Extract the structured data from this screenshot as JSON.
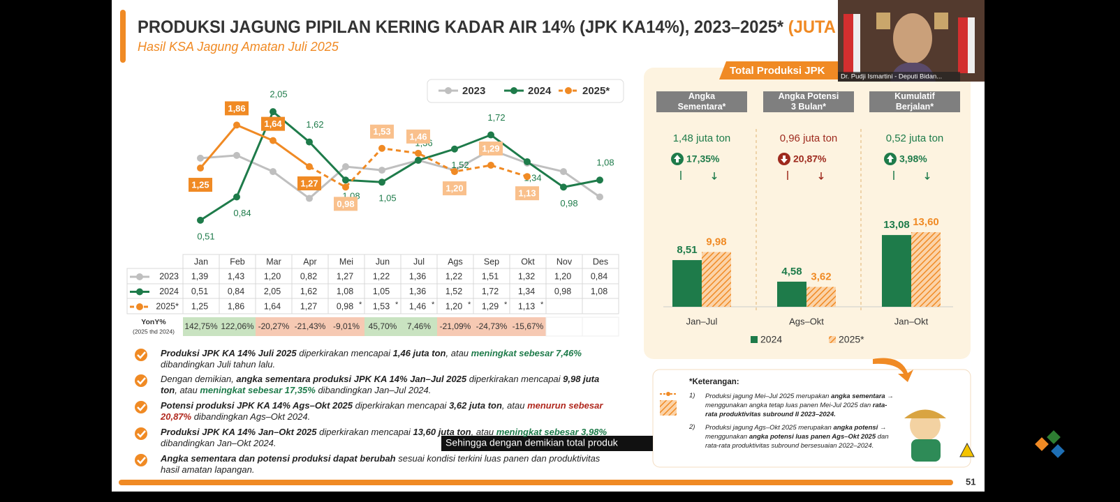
{
  "header": {
    "title": "PRODUKSI JAGUNG PIPILAN KERING KADAR AIR 14% (JPK KA14%), 2023–2025* ",
    "title_highlight": "(JUTA",
    "subtitle": "Hasil KSA Jagung Amatan Juli 2025"
  },
  "chart_data": [
    {
      "type": "line",
      "categories": [
        "Jan",
        "Feb",
        "Mar",
        "Apr",
        "Mei",
        "Jun",
        "Jul",
        "Ags",
        "Sep",
        "Okt",
        "Nov",
        "Des"
      ],
      "ylim": [
        0.4,
        2.2
      ],
      "legend": "top-right",
      "series": [
        {
          "name": "2023",
          "color": "#bfbfbf",
          "values": [
            1.39,
            1.43,
            1.2,
            0.82,
            1.27,
            1.22,
            1.36,
            1.22,
            1.51,
            1.32,
            1.2,
            0.84
          ],
          "value_labels": [
            "1,39",
            "1,43",
            "1,20",
            "0,82",
            "1,27",
            "1,22",
            "1,36",
            "1,22",
            "1,51",
            "1,32",
            "1,20",
            "0,84"
          ]
        },
        {
          "name": "2024",
          "color": "#1e7b4a",
          "values": [
            0.51,
            0.84,
            2.05,
            1.62,
            1.08,
            1.05,
            1.36,
            1.52,
            1.72,
            1.34,
            0.98,
            1.08
          ],
          "value_labels": [
            "0,51",
            "0,84",
            "2,05",
            "1,62",
            "1,08",
            "1,05",
            "1,36",
            "1,52",
            "1,72",
            "1,34",
            "0,98",
            "1,08"
          ]
        },
        {
          "name": "2025*",
          "color": "#f08a24",
          "dashed_after": "Apr",
          "values": [
            1.25,
            1.86,
            1.64,
            1.27,
            0.98,
            1.53,
            1.46,
            1.2,
            1.29,
            1.13,
            null,
            null
          ],
          "value_labels": [
            "1,25",
            "1,86",
            "1,64",
            "1,27",
            "0,98",
            "1,53",
            "1,46",
            "1,20",
            "1,29",
            "1,13",
            null,
            null
          ]
        }
      ]
    },
    {
      "type": "bar",
      "categories": [
        "Jan–Jul",
        "Ags–Okt",
        "Jan–Okt"
      ],
      "ylim": [
        0,
        15
      ],
      "legend": "bottom",
      "series": [
        {
          "name": "2024",
          "color": "#1e7b4a",
          "values": [
            8.51,
            4.58,
            13.08
          ],
          "value_labels": [
            "8,51",
            "4,58",
            "13,08"
          ]
        },
        {
          "name": "2025*",
          "color": "#f08a24",
          "pattern": "hatch",
          "values": [
            9.98,
            3.62,
            13.6
          ],
          "value_labels": [
            "9,98",
            "3,62",
            "13,60"
          ]
        }
      ]
    }
  ],
  "table": {
    "provisional_mark": "*"
  },
  "yoy": {
    "label": "YonY%",
    "note": "(2025 thd 2024)",
    "values": [
      142.75,
      122.06,
      -20.27,
      -21.43,
      -9.01,
      45.7,
      7.46,
      -21.09,
      -24.73,
      -15.67
    ],
    "value_labels": [
      "142,75%",
      "122,06%",
      "-20,27%",
      "-21,43%",
      "-9,01%",
      "45,70%",
      "7,46%",
      "-21,09%",
      "-24,73%",
      "-15,67%"
    ]
  },
  "panel_title": "Total Produksi JPK",
  "summary": [
    {
      "header": "Angka Sementara*",
      "total": "1,48 juta ton",
      "change": "17,35%",
      "direction": "up"
    },
    {
      "header": "Angka Potensi 3 Bulan*",
      "total": "0,96 juta ton",
      "change": "20,87%",
      "direction": "down"
    },
    {
      "header": "Kumulatif Berjalan*",
      "total": "0,52 juta ton",
      "change": "3,98%",
      "direction": "up"
    }
  ],
  "bullets": [
    [
      {
        "text": "Produksi JPK KA 14% Juli 2025",
        "style": "b"
      },
      {
        "text": " diperkirakan mencapai ",
        "style": "i"
      },
      {
        "text": "1,46 juta ton",
        "style": "b"
      },
      {
        "text": ", atau ",
        "style": "i"
      },
      {
        "text": "meningkat sebesar 7,46%",
        "style": "bg"
      },
      {
        "text": " dibandingkan Juli tahun lalu.",
        "style": "i"
      }
    ],
    [
      {
        "text": "Dengan demikian, ",
        "style": "i"
      },
      {
        "text": "angka sementara produksi JPK KA 14% Jan–Jul 2025",
        "style": "b"
      },
      {
        "text": " diperkirakan mencapai ",
        "style": "i"
      },
      {
        "text": "9,98 juta ton",
        "style": "b"
      },
      {
        "text": ", atau ",
        "style": "i"
      },
      {
        "text": "meningkat sebesar 17,35%",
        "style": "bg"
      },
      {
        "text": " dibandingkan Jan–Jul 2024.",
        "style": "i"
      }
    ],
    [
      {
        "text": "Potensi produksi JPK KA 14% Ags–Okt 2025",
        "style": "b"
      },
      {
        "text": " diperkirakan mencapai ",
        "style": "i"
      },
      {
        "text": "3,62 juta ton",
        "style": "b"
      },
      {
        "text": ", atau ",
        "style": "i"
      },
      {
        "text": "menurun sebesar 20,87%",
        "style": "br"
      },
      {
        "text": " dibandingkan Ags–Okt 2024.",
        "style": "i"
      }
    ],
    [
      {
        "text": "Produksi JPK KA 14% Jan–Okt 2025",
        "style": "b"
      },
      {
        "text": " diperkirakan mencapai ",
        "style": "i"
      },
      {
        "text": "13,60 juta ton",
        "style": "b"
      },
      {
        "text": ", atau ",
        "style": "i"
      },
      {
        "text": "meningkat sebesar 3,98%",
        "style": "bg"
      },
      {
        "text": " dibandingkan Jan–Okt 2024.",
        "style": "i"
      }
    ],
    [
      {
        "text": "Angka sementara dan potensi produksi dapat berubah",
        "style": "b"
      },
      {
        "text": " sesuai kondisi terkini luas panen dan produktivitas hasil amatan lapangan.",
        "style": "i"
      }
    ]
  ],
  "notes": {
    "title": "*Keterangan:",
    "items": [
      {
        "num": "1)",
        "segments": [
          {
            "text": "Produksi jagung Mei–Jul 2025 merupakan ",
            "style": "i"
          },
          {
            "text": "angka sementara",
            "style": "b"
          },
          {
            "text": " → menggunakan angka tetap luas panen Mei-Jul 2025 dan ",
            "style": "i"
          },
          {
            "text": "rata-rata produktivitas subround II 2023–2024.",
            "style": "b"
          }
        ]
      },
      {
        "num": "2)",
        "segments": [
          {
            "text": "Produksi jagung Ags–Okt 2025 merupakan ",
            "style": "i"
          },
          {
            "text": "angka potensi",
            "style": "b"
          },
          {
            "text": " → menggunakan ",
            "style": "i"
          },
          {
            "text": "angka potensi luas panen Ags–Okt 2025",
            "style": "b"
          },
          {
            "text": " dan rata-rata produktivitas subround bersesuaian 2022–2024.",
            "style": "i"
          }
        ]
      }
    ]
  },
  "speaker": "Dr. Pudji Ismartini - Deputi Bidan...",
  "caption": "Sehingga dengan demikian total produk",
  "page_number": "51"
}
